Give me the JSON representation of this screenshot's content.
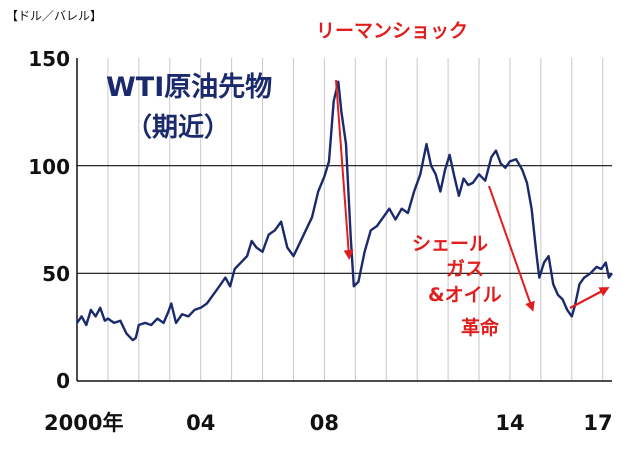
{
  "chart_data": {
    "type": "line",
    "title": "WTI原油先物",
    "subtitle": "（期近）",
    "unit_label": "【ドル／バレル】",
    "xlabel": "",
    "ylabel": "ドル／バレル",
    "xlim": [
      2000,
      2017.3
    ],
    "ylim": [
      0,
      150
    ],
    "yticks": [
      0,
      50,
      100,
      150
    ],
    "ytick_labels": [
      "0",
      "50",
      "100",
      "150"
    ],
    "xticks": [
      2000,
      2004,
      2008,
      2014,
      2017
    ],
    "xtick_labels": [
      "2000年",
      "04",
      "08",
      "14",
      "17"
    ],
    "grid": "vertical lines each year; horizontal at 50 and 100",
    "line_color": "#1a2a6c",
    "annotation_color": "#e01e1e",
    "annotations": {
      "lehman": "リーマンショック",
      "shale": [
        "シェール",
        "ガス",
        "&オイル",
        "革命"
      ]
    },
    "series": [
      {
        "name": "WTI原油先物（期近）",
        "x": [
          2000.0,
          2000.15,
          2000.3,
          2000.45,
          2000.6,
          2000.75,
          2000.9,
          2001.0,
          2001.2,
          2001.4,
          2001.6,
          2001.8,
          2001.9,
          2002.0,
          2002.2,
          2002.4,
          2002.6,
          2002.8,
          2002.95,
          2003.05,
          2003.2,
          2003.4,
          2003.6,
          2003.8,
          2004.0,
          2004.2,
          2004.4,
          2004.6,
          2004.8,
          2004.95,
          2005.1,
          2005.3,
          2005.5,
          2005.65,
          2005.8,
          2006.0,
          2006.2,
          2006.4,
          2006.6,
          2006.8,
          2007.0,
          2007.2,
          2007.4,
          2007.6,
          2007.8,
          2008.0,
          2008.15,
          2008.3,
          2008.45,
          2008.55,
          2008.7,
          2008.85,
          2008.95,
          2009.1,
          2009.3,
          2009.5,
          2009.7,
          2009.9,
          2010.1,
          2010.3,
          2010.5,
          2010.7,
          2010.9,
          2011.1,
          2011.3,
          2011.45,
          2011.6,
          2011.75,
          2011.9,
          2012.05,
          2012.2,
          2012.35,
          2012.5,
          2012.65,
          2012.8,
          2013.0,
          2013.2,
          2013.4,
          2013.55,
          2013.7,
          2013.85,
          2014.0,
          2014.2,
          2014.4,
          2014.55,
          2014.7,
          2014.85,
          2014.95,
          2015.1,
          2015.25,
          2015.4,
          2015.55,
          2015.7,
          2015.85,
          2016.0,
          2016.1,
          2016.25,
          2016.4,
          2016.6,
          2016.8,
          2016.95,
          2017.1,
          2017.2,
          2017.3
        ],
        "values": [
          27,
          30,
          26,
          33,
          30,
          34,
          28,
          29,
          27,
          28,
          22,
          19,
          20,
          26,
          27,
          26,
          29,
          27,
          32,
          36,
          27,
          31,
          30,
          33,
          34,
          36,
          40,
          44,
          48,
          44,
          52,
          55,
          58,
          65,
          62,
          60,
          68,
          70,
          74,
          62,
          58,
          64,
          70,
          76,
          88,
          95,
          102,
          130,
          139,
          125,
          110,
          67,
          44,
          46,
          60,
          70,
          72,
          76,
          80,
          75,
          80,
          78,
          88,
          96,
          110,
          100,
          96,
          88,
          98,
          105,
          95,
          86,
          94,
          91,
          92,
          96,
          93,
          104,
          107,
          101,
          99,
          102,
          103,
          98,
          92,
          80,
          60,
          48,
          55,
          58,
          45,
          40,
          38,
          33,
          30,
          35,
          45,
          48,
          50,
          53,
          52,
          55,
          48,
          50
        ]
      }
    ]
  }
}
